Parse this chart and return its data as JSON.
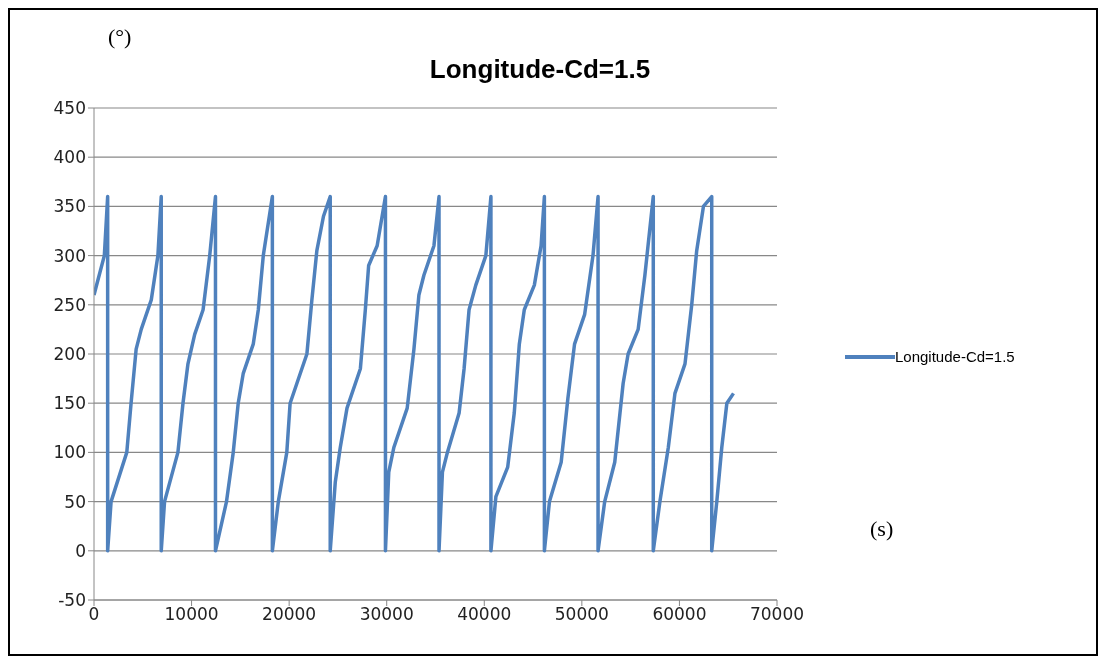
{
  "chart_data": {
    "type": "line",
    "title": "Longitude-Cd=1.5",
    "xlabel": "(s)",
    "ylabel": "(°)",
    "series": [
      {
        "name": "Longitude-Cd=1.5",
        "color": "#4f81bd",
        "x": [
          0,
          1060,
          1400,
          1400,
          1750,
          3360,
          3800,
          4320,
          4840,
          5870,
          6550,
          6890,
          6890,
          7230,
          8600,
          9120,
          9630,
          10320,
          11180,
          11860,
          12450,
          12450,
          13580,
          14270,
          14780,
          15290,
          16320,
          16840,
          17350,
          18280,
          18280,
          18890,
          19760,
          20100,
          20790,
          21820,
          22330,
          22840,
          23520,
          24210,
          24210,
          24730,
          25240,
          25930,
          27300,
          27810,
          28150,
          29020,
          29870,
          29870,
          30210,
          30730,
          32100,
          32790,
          33300,
          33810,
          34840,
          35360,
          35360,
          35710,
          36220,
          37420,
          37930,
          38440,
          39130,
          40160,
          40680,
          40680,
          41190,
          42400,
          43070,
          43590,
          44100,
          45130,
          45820,
          46160,
          46160,
          46680,
          47880,
          48570,
          49250,
          50280,
          51140,
          51660,
          51660,
          52340,
          53370,
          54230,
          54740,
          55770,
          56460,
          57320,
          57320,
          58000,
          58860,
          59540,
          60570,
          61260,
          61770,
          62460,
          63310,
          63310,
          63830,
          64340,
          64860,
          65540
        ],
        "values": [
          260,
          300,
          360,
          0,
          50,
          100,
          150,
          205,
          225,
          255,
          300,
          360,
          0,
          50,
          100,
          150,
          190,
          220,
          245,
          300,
          360,
          0,
          50,
          100,
          150,
          180,
          210,
          245,
          300,
          360,
          0,
          50,
          100,
          150,
          170,
          200,
          255,
          305,
          340,
          360,
          0,
          70,
          105,
          145,
          185,
          245,
          290,
          310,
          360,
          0,
          80,
          105,
          145,
          205,
          260,
          280,
          310,
          360,
          0,
          80,
          100,
          140,
          185,
          245,
          270,
          300,
          360,
          0,
          55,
          85,
          140,
          210,
          245,
          270,
          310,
          360,
          0,
          50,
          90,
          155,
          210,
          240,
          300,
          360,
          0,
          50,
          90,
          170,
          200,
          225,
          280,
          360,
          0,
          50,
          105,
          160,
          190,
          250,
          305,
          350,
          360,
          0,
          50,
          105,
          150,
          160
        ]
      }
    ],
    "xlim": [
      0,
      70000
    ],
    "xticks": [
      0,
      10000,
      20000,
      30000,
      40000,
      50000,
      60000,
      70000
    ],
    "ylim": [
      -50,
      450
    ],
    "yticks": [
      -50,
      0,
      50,
      100,
      150,
      200,
      250,
      300,
      350,
      400,
      450
    ],
    "grid": "y",
    "legend": "right",
    "marker": "none",
    "line_style": "solid"
  }
}
